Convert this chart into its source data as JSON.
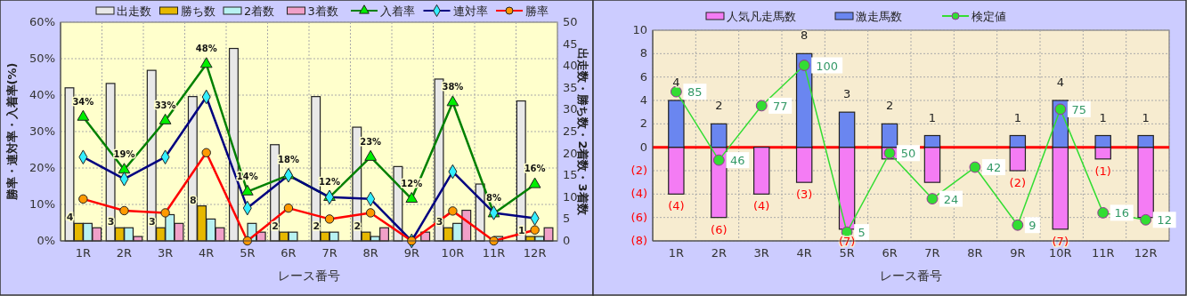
{
  "chart_data": [
    {
      "type": "bar",
      "xlabel": "レース番号",
      "ylabel": "勝率・連対率・入着率(%)",
      "y2label": "出走数・勝ち数・2着数・3着数",
      "categories": [
        "1R",
        "2R",
        "3R",
        "4R",
        "5R",
        "6R",
        "7R",
        "8R",
        "9R",
        "10R",
        "11R",
        "12R"
      ],
      "ylim": [
        0,
        60
      ],
      "yticks": [
        {
          "value": 0,
          "label": "0%"
        },
        {
          "value": 10,
          "label": "10%"
        },
        {
          "value": 20,
          "label": "20%"
        },
        {
          "value": 30,
          "label": "30%"
        },
        {
          "value": 40,
          "label": "40%"
        },
        {
          "value": 50,
          "label": "50%"
        },
        {
          "value": 60,
          "label": "60%"
        }
      ],
      "y2lim": [
        0,
        50
      ],
      "y2ticks": [
        0,
        5,
        10,
        15,
        20,
        25,
        30,
        35,
        40,
        45,
        50
      ],
      "grid": true,
      "legend": "top",
      "series": [
        {
          "name": "出走数",
          "type": "bar",
          "axis": "y2",
          "color": "#e8e8e8",
          "values": [
            35,
            36,
            39,
            33,
            44,
            22,
            33,
            26,
            17,
            37,
            13,
            32
          ]
        },
        {
          "name": "勝ち数",
          "type": "bar",
          "axis": "y2",
          "color": "#e6b800",
          "values": [
            4,
            3,
            3,
            8,
            0,
            2,
            2,
            2,
            0,
            3,
            0,
            1
          ],
          "value_labels": [
            "4",
            "3",
            "3",
            "8",
            null,
            "2",
            "2",
            "2",
            null,
            "3",
            null,
            "1"
          ]
        },
        {
          "name": "2着数",
          "type": "bar",
          "axis": "y2",
          "color": "#b8f2f2",
          "values": [
            4,
            3,
            6,
            5,
            4,
            2,
            2,
            1,
            0,
            4,
            1,
            1
          ]
        },
        {
          "name": "3着数",
          "type": "bar",
          "axis": "y2",
          "color": "#f0a0c8",
          "values": [
            3,
            1,
            4,
            3,
            2,
            0,
            0,
            3,
            2,
            7,
            0,
            3
          ]
        },
        {
          "name": "入着率",
          "type": "line",
          "marker": "triangle",
          "color": "#008000",
          "values": [
            34,
            19.5,
            33,
            48.5,
            13.5,
            18,
            12,
            23,
            11.5,
            38,
            7.5,
            15.5
          ],
          "value_labels": [
            "34%",
            "19%",
            "33%",
            "48%",
            "14%",
            "18%",
            "12%",
            "23%",
            "12%",
            "38%",
            "8%",
            "16%"
          ]
        },
        {
          "name": "連対率",
          "type": "line",
          "marker": "diamond",
          "color": "#000080",
          "values": [
            23,
            17,
            23,
            39.5,
            9,
            18,
            12,
            11.5,
            0,
            19,
            7.7,
            6.2
          ]
        },
        {
          "name": "勝率",
          "type": "line",
          "marker": "circle",
          "color": "#ff0000",
          "values": [
            11.5,
            8.3,
            7.7,
            24.2,
            0,
            9,
            6,
            7.7,
            0,
            8.2,
            0,
            3
          ]
        }
      ]
    },
    {
      "type": "bar",
      "xlabel": "レース番号",
      "stacked": true,
      "categories": [
        "1R",
        "2R",
        "3R",
        "4R",
        "5R",
        "6R",
        "7R",
        "8R",
        "9R",
        "10R",
        "11R",
        "12R"
      ],
      "ylim": [
        -8,
        10
      ],
      "yticks": [
        {
          "value": -8,
          "label": "(8)"
        },
        {
          "value": -6,
          "label": "(6)"
        },
        {
          "value": -4,
          "label": "(4)"
        },
        {
          "value": -2,
          "label": "(2)"
        },
        0,
        2,
        4,
        6,
        8,
        10
      ],
      "y2lim": [
        0,
        120
      ],
      "tick_labels": "xy",
      "grid": true,
      "legend": "top",
      "ref_lines": [
        {
          "axis": "y",
          "value": 0,
          "color": "#ff0000"
        }
      ],
      "series": [
        {
          "name": "人気凡走馬数",
          "type": "bar",
          "color": "#f47cf4",
          "values": [
            -4,
            -6,
            -4,
            -3,
            -7,
            -1,
            -3,
            0,
            -2,
            -7,
            -1,
            -6
          ],
          "value_labels": [
            "(4)",
            "(6)",
            "(4)",
            "(3)",
            "(7)",
            null,
            null,
            null,
            "(2)",
            "(7)",
            "(1)",
            null
          ]
        },
        {
          "name": "激走馬数",
          "type": "bar",
          "color": "#6a86f0",
          "values": [
            4,
            2,
            0,
            8,
            3,
            2,
            1,
            0,
            1,
            4,
            1,
            1
          ],
          "value_labels": [
            "4",
            "2",
            null,
            "8",
            "3",
            "2",
            "1",
            null,
            "1",
            "4",
            "1",
            "1"
          ]
        },
        {
          "name": "検定値",
          "type": "line",
          "axis": "y2",
          "marker": "circle",
          "color": "#33dd33",
          "values": [
            85,
            46,
            77,
            100,
            5,
            50,
            24,
            42,
            9,
            75,
            16,
            12
          ],
          "value_labels": [
            "85",
            "46",
            "77",
            "100",
            "5",
            "50",
            "24",
            "42",
            "9",
            "75",
            "16",
            "12"
          ]
        }
      ]
    }
  ]
}
